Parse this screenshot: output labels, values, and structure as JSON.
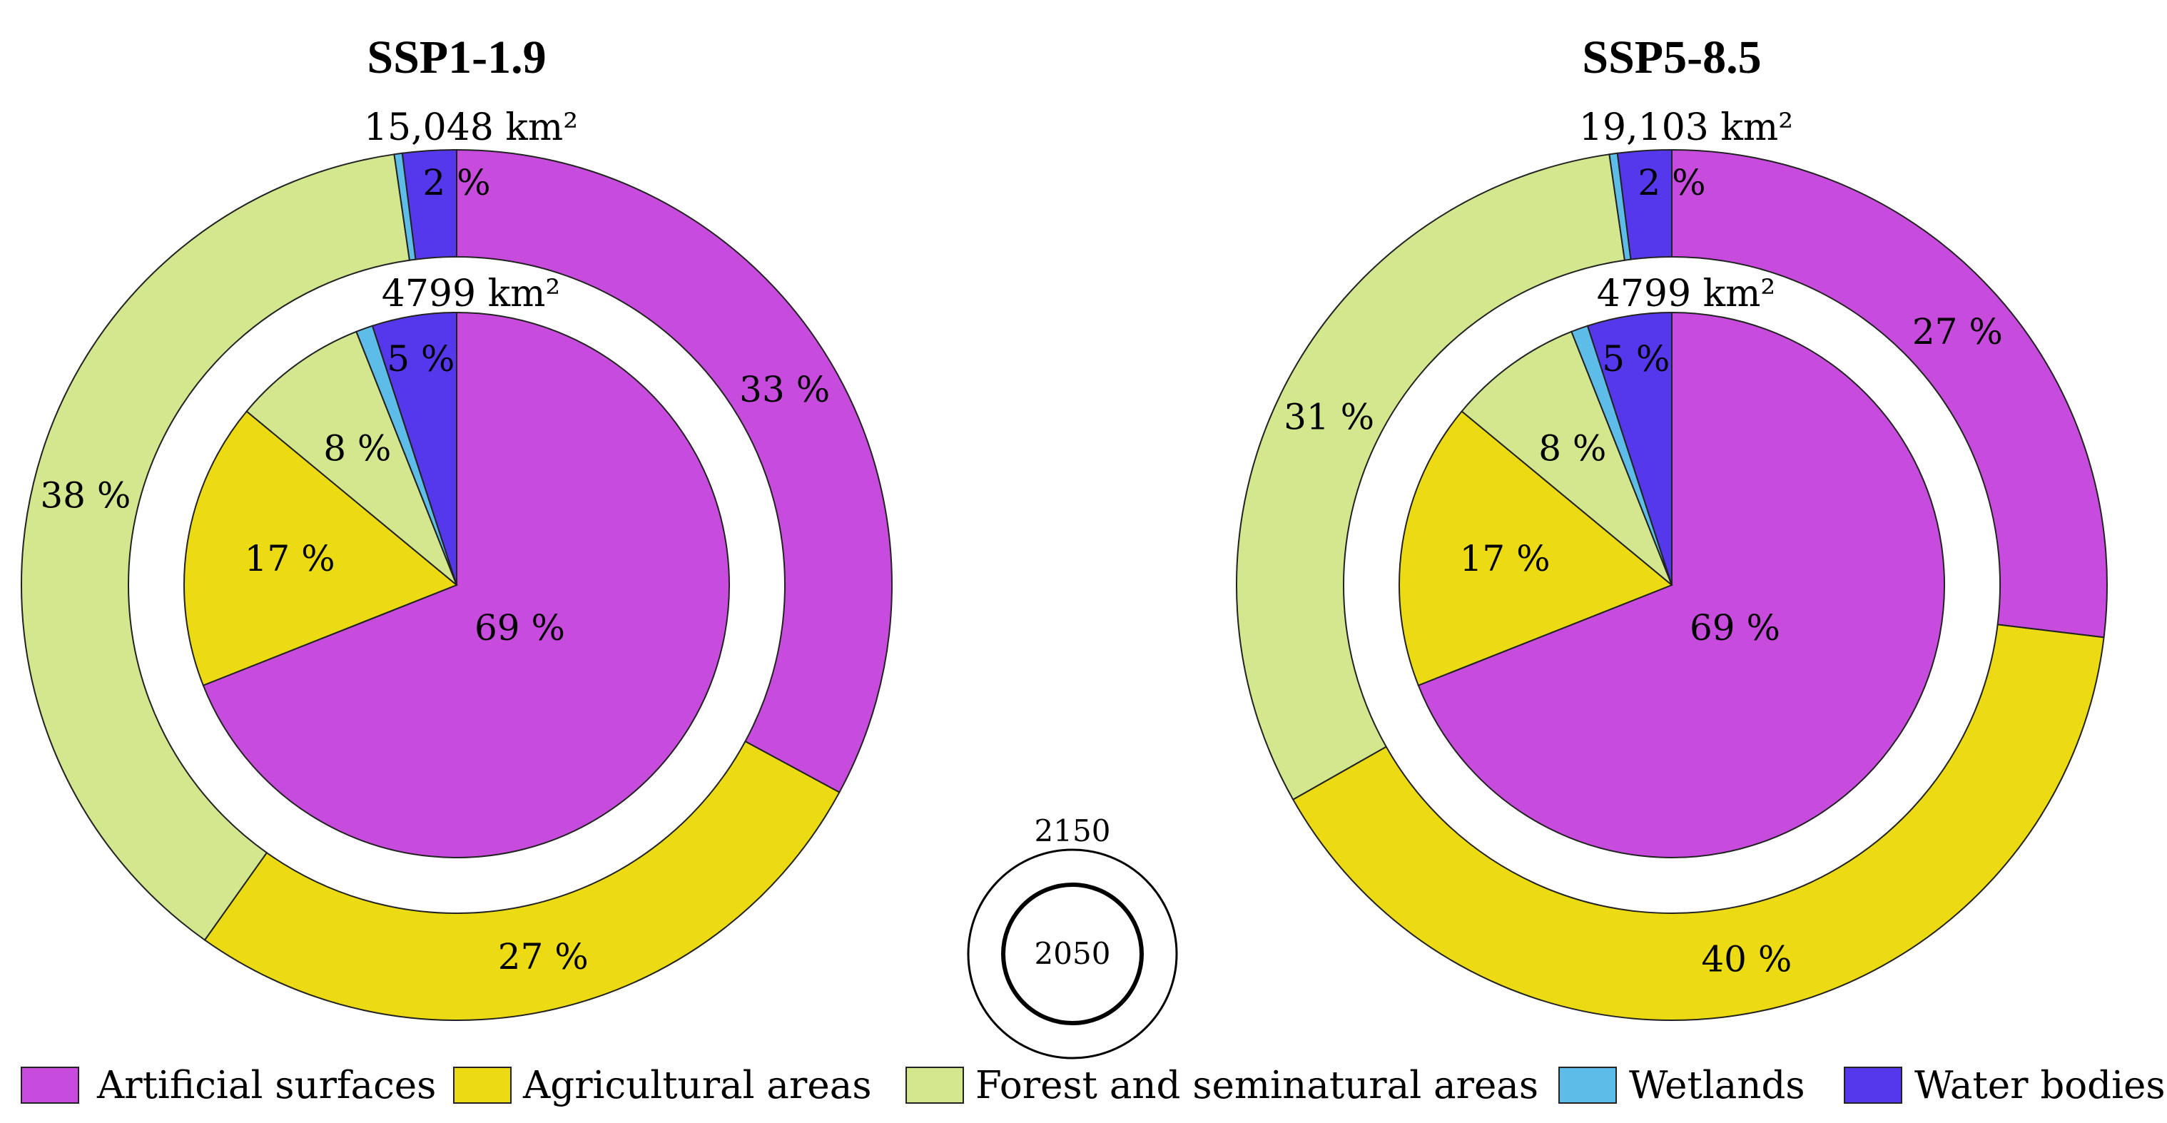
{
  "chart_data": [
    {
      "type": "pie",
      "title": "SSP1-1.9",
      "categories": [
        "Artificial surfaces",
        "Agricultural areas",
        "Forest and seminatural areas",
        "Wetlands",
        "Water bodies"
      ],
      "series": [
        {
          "name": "2050",
          "total": "4799 km²",
          "values": [
            69,
            17,
            8,
            1,
            5
          ],
          "labels": [
            "69 %",
            "17 %",
            "8 %",
            "",
            "5 %"
          ]
        },
        {
          "name": "2150",
          "total": "15,048 km²",
          "values": [
            33,
            27,
            38,
            0.3,
            2
          ],
          "labels": [
            "33 %",
            "27 %",
            "38 %",
            "",
            "2 %"
          ]
        }
      ]
    },
    {
      "type": "pie",
      "title": "SSP5-8.5",
      "categories": [
        "Artificial surfaces",
        "Agricultural areas",
        "Forest and seminatural areas",
        "Wetlands",
        "Water bodies"
      ],
      "series": [
        {
          "name": "2050",
          "total": "4799 km²",
          "values": [
            69,
            17,
            8,
            1,
            5
          ],
          "labels": [
            "69 %",
            "17 %",
            "8 %",
            "",
            "5 %"
          ]
        },
        {
          "name": "2150",
          "total": "19,103 km²",
          "values": [
            27,
            40,
            31,
            0.3,
            2
          ],
          "labels": [
            "27 %",
            "40 %",
            "31 %",
            "",
            "2 %"
          ]
        }
      ]
    }
  ],
  "key": {
    "outer_label": "2150",
    "inner_label": "2050"
  },
  "legend": [
    {
      "label": "Artificial surfaces",
      "color": "#c74bdd"
    },
    {
      "label": "Agricultural areas",
      "color": "#ecdb12"
    },
    {
      "label": "Forest and seminatural areas",
      "color": "#d3e78f"
    },
    {
      "label": "Wetlands",
      "color": "#5dbde8"
    },
    {
      "label": "Water bodies",
      "color": "#5538ec"
    }
  ]
}
